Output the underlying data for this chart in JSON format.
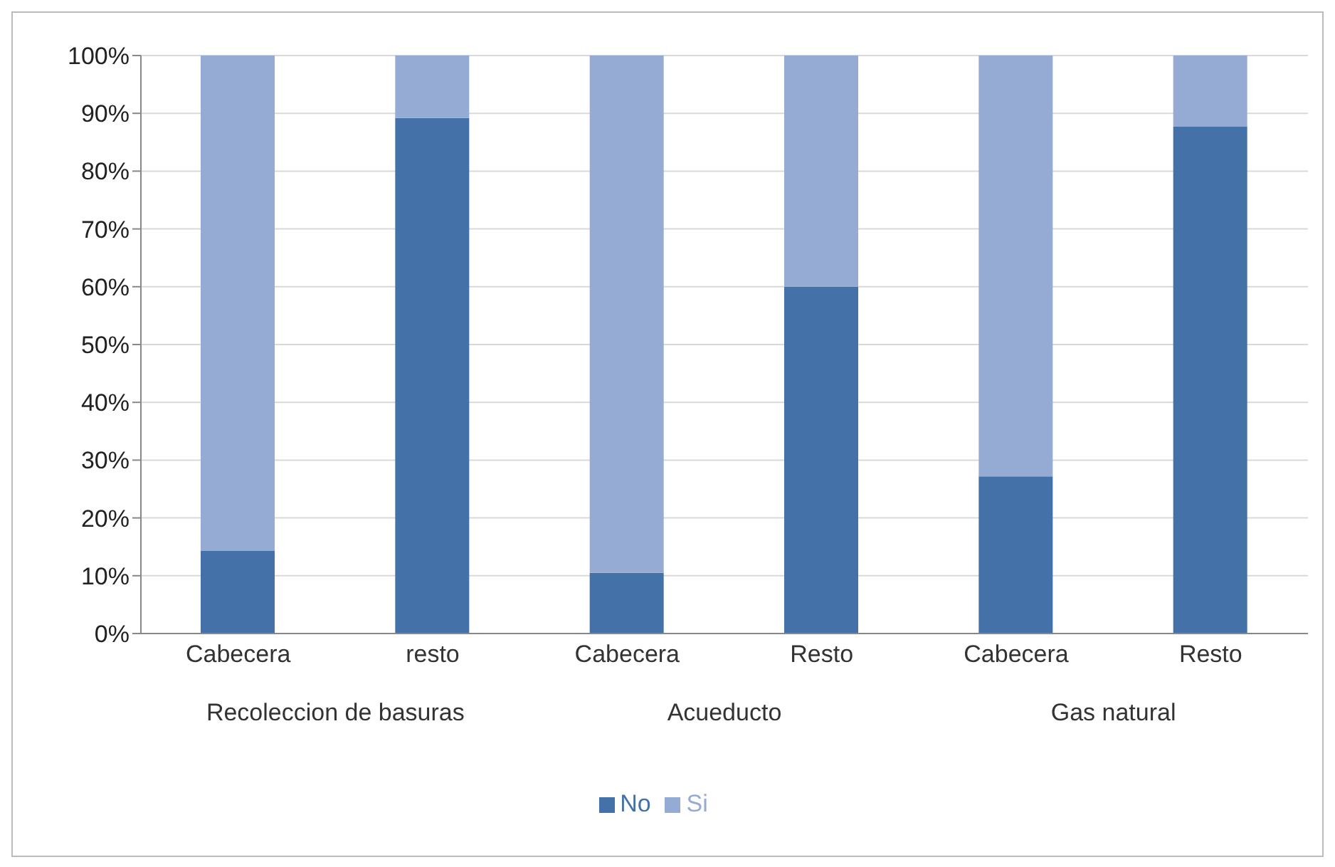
{
  "chart_data": {
    "type": "bar",
    "stacked": true,
    "categories": [
      "Cabecera",
      "resto",
      "Cabecera",
      "Resto",
      "Cabecera",
      "Resto"
    ],
    "annotations": [
      "Recoleccion de basuras",
      "Acueducto",
      "Gas natural"
    ],
    "series": [
      {
        "name": "No",
        "color": "#4472a8",
        "values": [
          14.3,
          89.2,
          10.5,
          60,
          27.2,
          87.7
        ]
      },
      {
        "name": "Si",
        "color": "#95abd3",
        "values": [
          85.7,
          10.8,
          89.5,
          40,
          72.8,
          12.3
        ]
      }
    ],
    "ylim": [
      0,
      100
    ],
    "yticks": [
      {
        "value": 0,
        "label": "0%"
      },
      {
        "value": 10,
        "label": "10%"
      },
      {
        "value": 20,
        "label": "20%"
      },
      {
        "value": 30,
        "label": "30%"
      },
      {
        "value": 40,
        "label": "40%"
      },
      {
        "value": 50,
        "label": "50%"
      },
      {
        "value": 60,
        "label": "60%"
      },
      {
        "value": 70,
        "label": "70%"
      },
      {
        "value": 80,
        "label": "80%"
      },
      {
        "value": 90,
        "label": "90%"
      },
      {
        "value": 100,
        "label": "100%"
      }
    ],
    "grid": "y",
    "legend": "bottom"
  }
}
